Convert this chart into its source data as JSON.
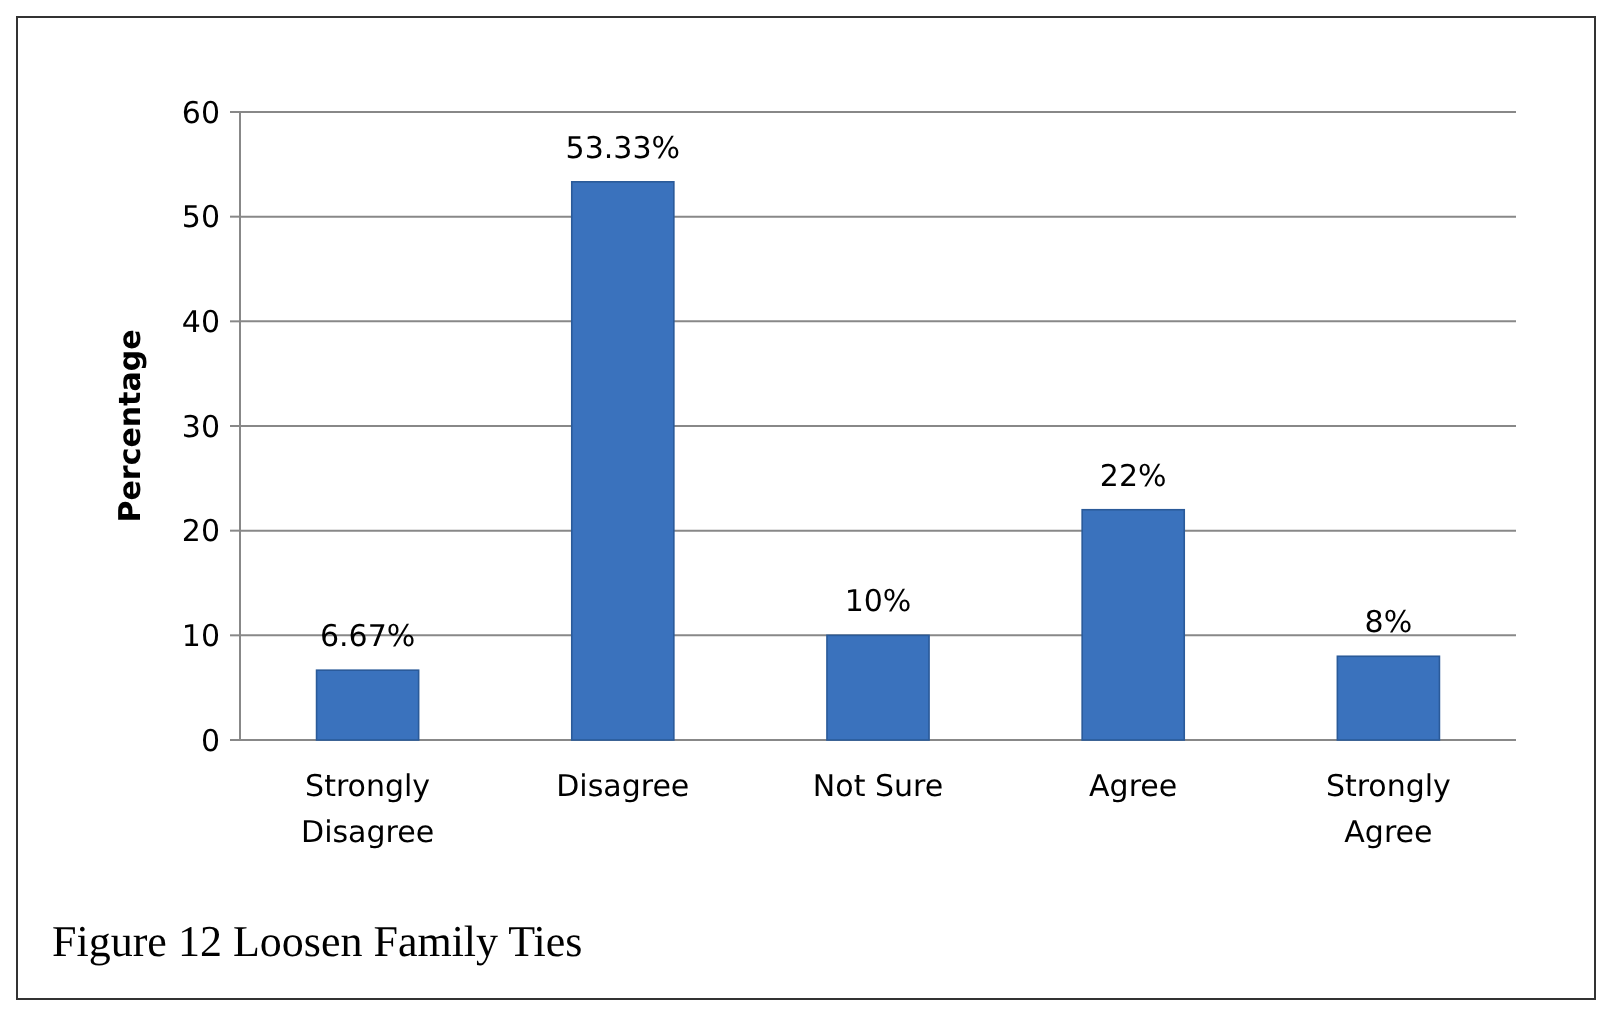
{
  "chart_data": {
    "type": "bar",
    "ylabel": "Percentage",
    "categories": [
      "Strongly Disagree",
      "Disagree",
      "Not Sure",
      "Agree",
      "Strongly Agree"
    ],
    "values": [
      6.67,
      53.33,
      10,
      22,
      8
    ],
    "color": "#3a72bd",
    "value_labels": [
      "6.67%",
      "53.33%",
      "10%",
      "22%",
      "8%"
    ],
    "ylim": [
      0,
      60
    ],
    "yticks": [
      0,
      10,
      20,
      30,
      40,
      50,
      60
    ],
    "grid": "y",
    "annotations": [
      "Figure 12 Loosen Family Ties"
    ]
  }
}
